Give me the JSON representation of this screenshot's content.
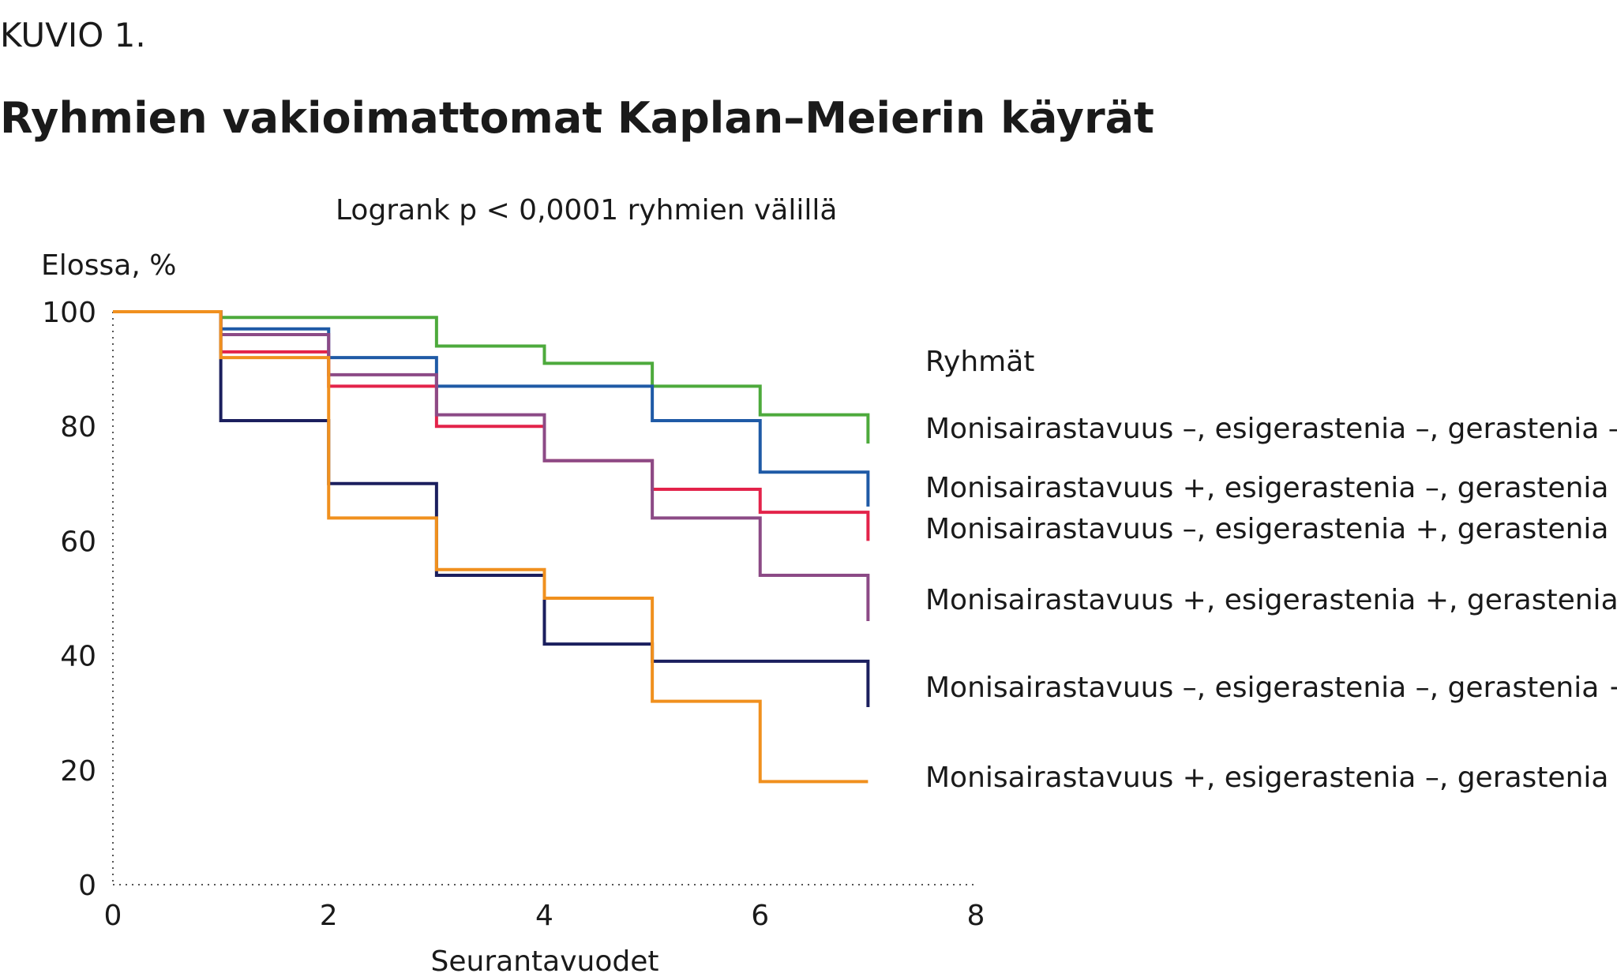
{
  "figure_label": "KUVIO 1.",
  "title": "Ryhmien vakioimattomat Kaplan–Meierin käyrät",
  "colors": {
    "green": "#4daa3c",
    "blue": "#1f5aa6",
    "red": "#e3234a",
    "purple": "#8c4a86",
    "navy": "#1b1f5e",
    "orange": "#f0901e",
    "text": "#1a1a1a",
    "axis": "#555555"
  },
  "chart_data": {
    "type": "line",
    "step": true,
    "subtitle": "Logrank p < 0,0001 ryhmien välillä",
    "xlabel": "Seurantavuodet",
    "ylabel": "Elossa, %",
    "xlim": [
      0,
      8
    ],
    "ylim": [
      0,
      100
    ],
    "x_ticks": [
      "0",
      "2",
      "4",
      "6",
      "8"
    ],
    "y_ticks": [
      "0",
      "20",
      "40",
      "60",
      "80",
      "100"
    ],
    "legend_title": "Ryhmät",
    "legend_placement": "right",
    "series": [
      {
        "name": "Monisairastavuus –, esigerastenia –, gerastenia –",
        "color_key": "green",
        "x": [
          0,
          1,
          3,
          4,
          5,
          6,
          7,
          7
        ],
        "y": [
          100,
          99,
          94,
          91,
          87,
          82,
          77,
          82
        ]
      },
      {
        "name": "Monisairastavuus +, esigerastenia –, gerastenia –",
        "color_key": "blue",
        "x": [
          0,
          1,
          2,
          3,
          5,
          6,
          7,
          7
        ],
        "y": [
          100,
          97,
          92,
          87,
          81,
          72,
          66,
          72
        ]
      },
      {
        "name": "Monisairastavuus –, esigerastenia +, gerastenia –",
        "color_key": "red",
        "x": [
          0,
          1,
          2,
          3,
          4,
          5,
          6,
          7,
          7
        ],
        "y": [
          100,
          93,
          87,
          80,
          74,
          69,
          65,
          60,
          65
        ]
      },
      {
        "name": "Monisairastavuus +, esigerastenia +, gerastenia –",
        "color_key": "purple",
        "x": [
          0,
          1,
          2,
          3,
          4,
          5,
          6,
          7,
          7
        ],
        "y": [
          100,
          96,
          89,
          82,
          74,
          64,
          54,
          46,
          54
        ]
      },
      {
        "name": "Monisairastavuus –, esigerastenia –, gerastenia +",
        "color_key": "navy",
        "x": [
          0,
          1,
          2,
          3,
          4,
          5,
          7,
          7
        ],
        "y": [
          100,
          81,
          70,
          54,
          42,
          39,
          31,
          39
        ]
      },
      {
        "name": "Monisairastavuus +, esigerastenia –, gerastenia +",
        "color_key": "orange",
        "x": [
          0,
          1,
          2,
          3,
          4,
          5,
          6,
          7
        ],
        "y": [
          100,
          92,
          64,
          55,
          50,
          32,
          18,
          18
        ]
      }
    ]
  }
}
